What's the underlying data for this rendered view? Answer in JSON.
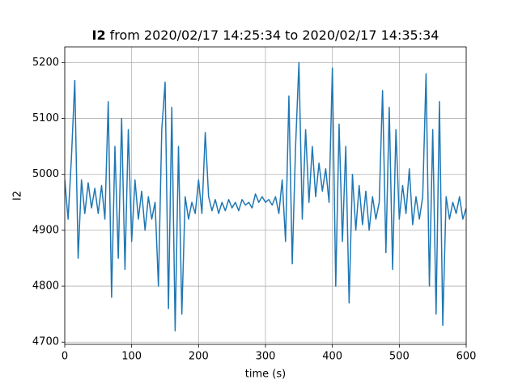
{
  "chart_data": {
    "type": "line",
    "title_variable": "I2",
    "title": "from 2020/02/17 14:25:34 to 2020/02/17 14:35:34",
    "x_label": "time (s)",
    "y_label": "I2",
    "xlim": [
      0,
      600
    ],
    "ylim": [
      4696,
      5228
    ],
    "xticks": [
      0,
      100,
      200,
      300,
      400,
      500,
      600
    ],
    "yticks": [
      4700,
      4800,
      4900,
      5000,
      5100,
      5200
    ],
    "grid": true,
    "series": [
      {
        "color": "#1f77b4",
        "x": [
          0,
          5,
          10,
          15,
          20,
          25,
          30,
          35,
          40,
          45,
          50,
          55,
          60,
          65,
          70,
          75,
          80,
          85,
          90,
          95,
          100,
          105,
          110,
          115,
          120,
          125,
          130,
          135,
          140,
          145,
          150,
          155,
          160,
          165,
          170,
          175,
          180,
          185,
          190,
          195,
          200,
          205,
          210,
          215,
          220,
          225,
          230,
          235,
          240,
          245,
          250,
          255,
          260,
          265,
          270,
          275,
          280,
          285,
          290,
          295,
          300,
          305,
          310,
          315,
          320,
          325,
          330,
          335,
          340,
          345,
          350,
          355,
          360,
          365,
          370,
          375,
          380,
          385,
          390,
          395,
          400,
          405,
          410,
          415,
          420,
          425,
          430,
          435,
          440,
          445,
          450,
          455,
          460,
          465,
          470,
          475,
          480,
          485,
          490,
          495,
          500,
          505,
          510,
          515,
          520,
          525,
          530,
          535,
          540,
          545,
          550,
          555,
          560,
          565,
          570,
          575,
          580,
          585,
          590,
          595,
          600
        ],
        "values": [
          4990,
          4920,
          5030,
          5168,
          4850,
          4990,
          4930,
          4985,
          4940,
          4975,
          4930,
          4980,
          4920,
          5130,
          4780,
          5050,
          4850,
          5100,
          4830,
          5080,
          4880,
          4990,
          4920,
          4970,
          4900,
          4960,
          4920,
          4950,
          4800,
          5080,
          5165,
          4760,
          5120,
          4720,
          5050,
          4750,
          4960,
          4920,
          4950,
          4930,
          4990,
          4930,
          5075,
          4960,
          4935,
          4955,
          4930,
          4950,
          4935,
          4955,
          4940,
          4950,
          4935,
          4955,
          4945,
          4950,
          4940,
          4965,
          4950,
          4960,
          4950,
          4955,
          4945,
          4960,
          4930,
          4990,
          4880,
          5140,
          4840,
          5050,
          5200,
          4920,
          5080,
          4950,
          5050,
          4960,
          5020,
          4970,
          5010,
          4950,
          5190,
          4800,
          5090,
          4880,
          5050,
          4770,
          5000,
          4900,
          4980,
          4910,
          4970,
          4900,
          4960,
          4920,
          4950,
          5150,
          4860,
          5120,
          4830,
          5080,
          4920,
          4980,
          4930,
          5010,
          4910,
          4960,
          4920,
          4960,
          5180,
          4800,
          5080,
          4750,
          5130,
          4730,
          4960,
          4920,
          4950,
          4930,
          4960,
          4920,
          4940
        ]
      }
    ]
  }
}
